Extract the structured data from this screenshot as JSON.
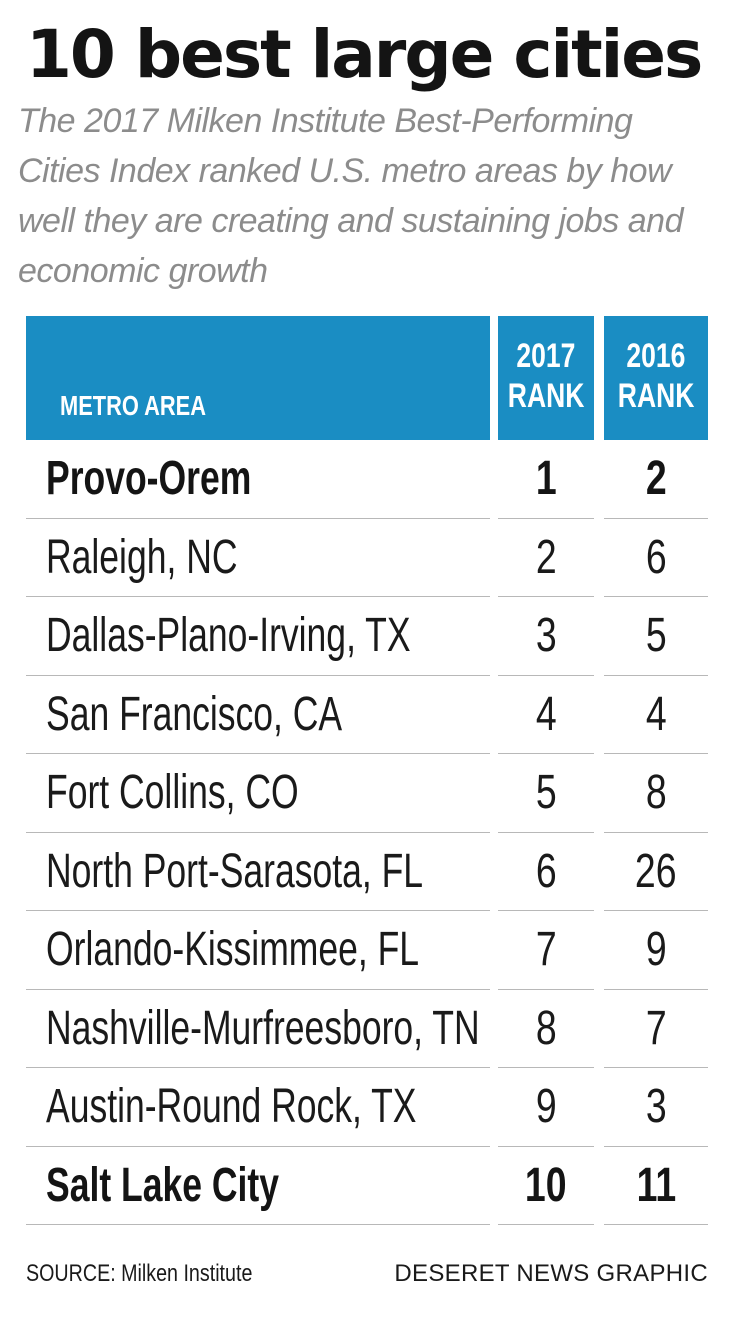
{
  "header": {
    "title": "10 best large cities",
    "subtitle": "The 2017 Milken Institute Best-Performing Cities Index ranked U.S. metro areas by how well they are creating and sustaining jobs and economic growth"
  },
  "table": {
    "columns": {
      "metro": "METRO AREA",
      "rank2017_line1": "2017",
      "rank2017_line2": "RANK",
      "rank2016_line1": "2016",
      "rank2016_line2": "RANK"
    },
    "rows": [
      {
        "metro": "Provo-Orem",
        "rank2017": "1",
        "rank2016": "2"
      },
      {
        "metro": "Raleigh, NC",
        "rank2017": "2",
        "rank2016": "6"
      },
      {
        "metro": "Dallas-Plano-Irving, TX",
        "rank2017": "3",
        "rank2016": "5"
      },
      {
        "metro": "San Francisco, CA",
        "rank2017": "4",
        "rank2016": "4"
      },
      {
        "metro": "Fort Collins, CO",
        "rank2017": "5",
        "rank2016": "8"
      },
      {
        "metro": "North Port-Sarasota, FL",
        "rank2017": "6",
        "rank2016": "26"
      },
      {
        "metro": "Orlando-Kissimmee, FL",
        "rank2017": "7",
        "rank2016": "9"
      },
      {
        "metro": "Nashville-Murfreesboro, TN",
        "rank2017": "8",
        "rank2016": "7"
      },
      {
        "metro": "Austin-Round Rock, TX",
        "rank2017": "9",
        "rank2016": "3"
      },
      {
        "metro": "Salt Lake City",
        "rank2017": "10",
        "rank2016": "11"
      }
    ]
  },
  "footer": {
    "source": "SOURCE: Milken Institute",
    "credit": "DESERET NEWS GRAPHIC"
  },
  "colors": {
    "header_blue": "#1a8dc3",
    "subtitle_gray": "#8c8c8c",
    "rule_gray": "#b8b8b8"
  }
}
